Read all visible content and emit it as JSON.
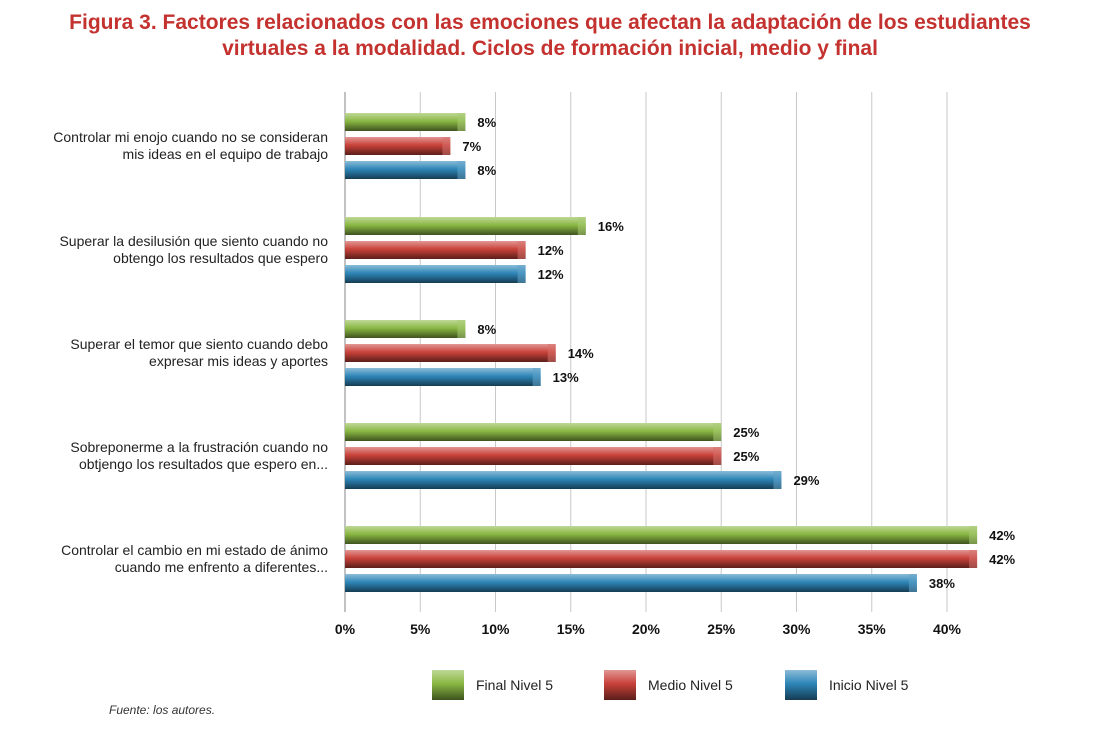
{
  "title_line1": "Figura 3. Factores relacionados con las emociones que afectan la adaptación de los estudiantes",
  "title_line2": "virtuales a la modalidad. Ciclos de formación inicial, medio y final",
  "source": "Fuente: los autores.",
  "colors": {
    "final": "#8ab843",
    "medio": "#c9423a",
    "inicio": "#2e86b8",
    "grid": "#c8c8c8"
  },
  "chart_data": {
    "type": "bar",
    "orientation": "horizontal",
    "categories": [
      [
        "Controlar mi enojo cuando no se consideran",
        "mis ideas en el equipo de trabajo"
      ],
      [
        "Superar la desilusión que siento cuando no",
        "obtengo los resultados que espero"
      ],
      [
        "Superar el temor que siento cuando debo",
        "expresar mis ideas y aportes"
      ],
      [
        "Sobreponerme a la frustración cuando no",
        "obtjengo los resultados que espero en..."
      ],
      [
        "Controlar el cambio en mi estado de ánimo",
        "cuando me enfrento a diferentes..."
      ]
    ],
    "series": [
      {
        "name": "Final Nivel 5",
        "key": "final",
        "values": [
          8,
          16,
          8,
          25,
          42
        ],
        "labels": [
          "8%",
          "16%",
          "8%",
          "25%",
          "42%"
        ]
      },
      {
        "name": "Medio Nivel 5",
        "key": "medio",
        "values": [
          7,
          12,
          14,
          25,
          42
        ],
        "labels": [
          "7%",
          "12%",
          "14%",
          "25%",
          "42%"
        ]
      },
      {
        "name": "Inicio Nivel 5",
        "key": "inicio",
        "values": [
          8,
          12,
          13,
          29,
          38
        ],
        "labels": [
          "8%",
          "12%",
          "13%",
          "29%",
          "38%"
        ]
      }
    ],
    "x_ticks": [
      0,
      5,
      10,
      15,
      20,
      25,
      30,
      35,
      40
    ],
    "x_tick_labels": [
      "0%",
      "5%",
      "10%",
      "15%",
      "20%",
      "25%",
      "30%",
      "35%",
      "40%"
    ],
    "xlim": [
      0,
      40
    ],
    "grid": true,
    "legend_position": "bottom"
  }
}
